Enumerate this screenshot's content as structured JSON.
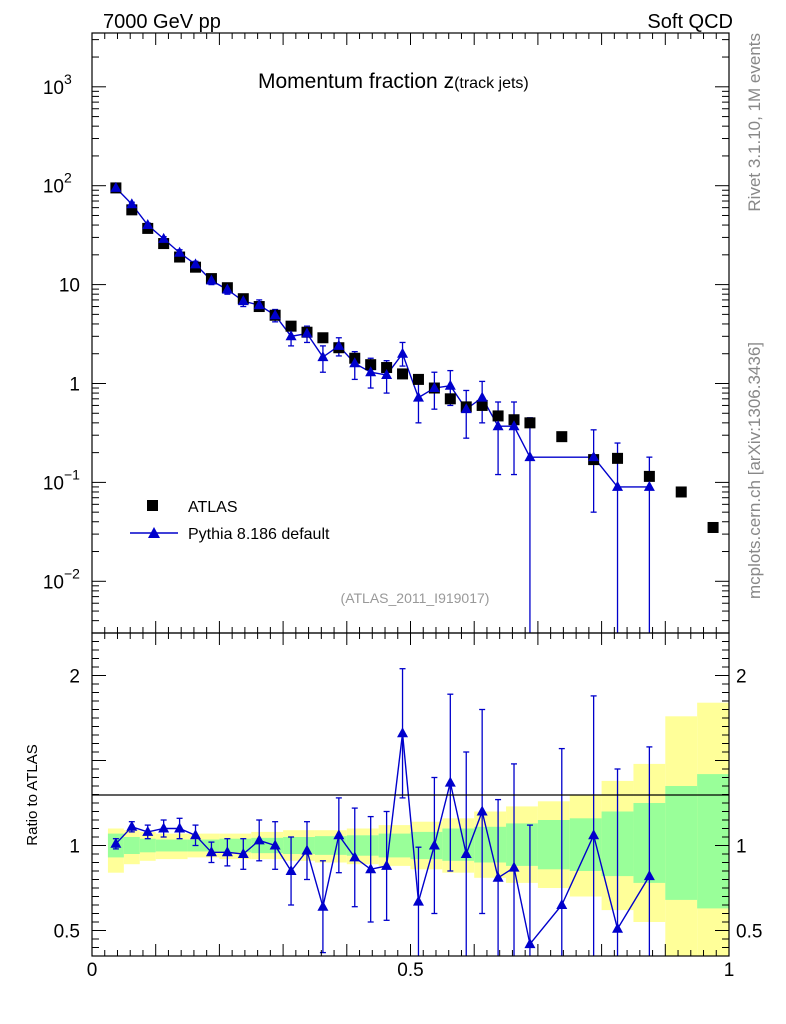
{
  "header": {
    "left": "7000 GeV pp",
    "right": "Soft QCD"
  },
  "side_labels": {
    "rivet": "Rivet 3.1.10,  1M events",
    "mcplots": "mcplots.cern.ch [arXiv:1306.3436]"
  },
  "chart_data": {
    "type": "scatter",
    "title_main": "Momentum fraction z",
    "title_sub": "(track jets)",
    "analysis_id": "(ATLAS_2011_I919017)",
    "xlim": [
      0,
      1
    ],
    "xticks": [
      {
        "v": 0,
        "label": "0"
      },
      {
        "v": 0.5,
        "label": "0.5"
      },
      {
        "v": 1,
        "label": "1"
      }
    ],
    "main_yscale": "log",
    "main_ylim": [
      0.003,
      3500
    ],
    "main_yticks": [
      {
        "v": 0.01,
        "base": "10",
        "exp": "−2"
      },
      {
        "v": 0.1,
        "base": "10",
        "exp": "−1"
      },
      {
        "v": 1,
        "base": "1",
        "exp": ""
      },
      {
        "v": 10,
        "base": "10",
        "exp": ""
      },
      {
        "v": 100,
        "base": "10",
        "exp": "2"
      },
      {
        "v": 1000,
        "base": "10",
        "exp": "3"
      }
    ],
    "ratio_ylabel": "Ratio to ATLAS",
    "ratio_ylim": [
      0.35,
      2.25
    ],
    "ratio_yticks": [
      {
        "v": 0.5,
        "label": "0.5"
      },
      {
        "v": 1,
        "label": "1"
      },
      {
        "v": 2,
        "label": "2"
      }
    ],
    "legend": {
      "data_label": "ATLAS",
      "mc_label": "Pythia 8.186 default"
    },
    "colors": {
      "data": "#000000",
      "mc": "#0000cc",
      "band_inner": "#99ff99",
      "band_outer": "#ffff99"
    },
    "data": [
      {
        "x": 0.0375,
        "y": 95
      },
      {
        "x": 0.0625,
        "y": 57
      },
      {
        "x": 0.0875,
        "y": 37
      },
      {
        "x": 0.1125,
        "y": 26
      },
      {
        "x": 0.1375,
        "y": 19
      },
      {
        "x": 0.1625,
        "y": 15
      },
      {
        "x": 0.1875,
        "y": 11.5
      },
      {
        "x": 0.2125,
        "y": 9.3
      },
      {
        "x": 0.2375,
        "y": 7.2
      },
      {
        "x": 0.2625,
        "y": 6.0
      },
      {
        "x": 0.2875,
        "y": 4.9
      },
      {
        "x": 0.3125,
        "y": 3.8
      },
      {
        "x": 0.3375,
        "y": 3.3
      },
      {
        "x": 0.3625,
        "y": 2.9
      },
      {
        "x": 0.3875,
        "y": 2.3
      },
      {
        "x": 0.4125,
        "y": 1.8
      },
      {
        "x": 0.4375,
        "y": 1.55
      },
      {
        "x": 0.4625,
        "y": 1.45
      },
      {
        "x": 0.4875,
        "y": 1.25
      },
      {
        "x": 0.5125,
        "y": 1.1
      },
      {
        "x": 0.5375,
        "y": 0.9
      },
      {
        "x": 0.5625,
        "y": 0.7
      },
      {
        "x": 0.5875,
        "y": 0.58
      },
      {
        "x": 0.6125,
        "y": 0.6
      },
      {
        "x": 0.6375,
        "y": 0.47
      },
      {
        "x": 0.6625,
        "y": 0.43
      },
      {
        "x": 0.6875,
        "y": 0.4
      },
      {
        "x": 0.7375,
        "y": 0.29
      },
      {
        "x": 0.7875,
        "y": 0.17
      },
      {
        "x": 0.825,
        "y": 0.175
      },
      {
        "x": 0.875,
        "y": 0.115
      },
      {
        "x": 0.925,
        "y": 0.08
      },
      {
        "x": 0.975,
        "y": 0.035
      }
    ],
    "mc": [
      {
        "x": 0.0375,
        "y": 95,
        "lo": 91,
        "hi": 99
      },
      {
        "x": 0.0625,
        "y": 65,
        "lo": 62,
        "hi": 68
      },
      {
        "x": 0.0875,
        "y": 40,
        "lo": 38,
        "hi": 42
      },
      {
        "x": 0.1125,
        "y": 29,
        "lo": 27.5,
        "hi": 30.5
      },
      {
        "x": 0.1375,
        "y": 21,
        "lo": 19.5,
        "hi": 22.5
      },
      {
        "x": 0.1625,
        "y": 16,
        "lo": 14.8,
        "hi": 17.2
      },
      {
        "x": 0.1875,
        "y": 11,
        "lo": 10,
        "hi": 12
      },
      {
        "x": 0.2125,
        "y": 8.9,
        "lo": 8,
        "hi": 9.8
      },
      {
        "x": 0.2375,
        "y": 6.8,
        "lo": 6,
        "hi": 7.6
      },
      {
        "x": 0.2625,
        "y": 6.2,
        "lo": 5.4,
        "hi": 7
      },
      {
        "x": 0.2875,
        "y": 4.9,
        "lo": 4.2,
        "hi": 5.6
      },
      {
        "x": 0.3125,
        "y": 3.0,
        "lo": 2.4,
        "hi": 3.6
      },
      {
        "x": 0.3375,
        "y": 3.2,
        "lo": 2.6,
        "hi": 3.8
      },
      {
        "x": 0.3625,
        "y": 1.85,
        "lo": 1.3,
        "hi": 2.4
      },
      {
        "x": 0.3875,
        "y": 2.4,
        "lo": 1.9,
        "hi": 2.9
      },
      {
        "x": 0.4125,
        "y": 1.6,
        "lo": 1.1,
        "hi": 2.1
      },
      {
        "x": 0.4375,
        "y": 1.3,
        "lo": 0.9,
        "hi": 1.8
      },
      {
        "x": 0.4625,
        "y": 1.22,
        "lo": 0.8,
        "hi": 1.7
      },
      {
        "x": 0.4875,
        "y": 2.0,
        "lo": 1.5,
        "hi": 2.6
      },
      {
        "x": 0.5125,
        "y": 0.72,
        "lo": 0.4,
        "hi": 1.1
      },
      {
        "x": 0.5375,
        "y": 0.9,
        "lo": 0.55,
        "hi": 1.3
      },
      {
        "x": 0.5625,
        "y": 0.95,
        "lo": 0.6,
        "hi": 1.35
      },
      {
        "x": 0.5875,
        "y": 0.55,
        "lo": 0.28,
        "hi": 0.85
      },
      {
        "x": 0.6125,
        "y": 0.72,
        "lo": 0.4,
        "hi": 1.05
      },
      {
        "x": 0.6375,
        "y": 0.37,
        "lo": 0.12,
        "hi": 0.65
      },
      {
        "x": 0.6625,
        "y": 0.37,
        "lo": 0.12,
        "hi": 0.65
      },
      {
        "x": 0.6875,
        "y": 0.18,
        "lo": 0.001,
        "hi": 0.45
      },
      {
        "x": 0.7875,
        "y": 0.18,
        "lo": 0.05,
        "hi": 0.34
      },
      {
        "x": 0.825,
        "y": 0.09,
        "lo": 0.001,
        "hi": 0.25
      },
      {
        "x": 0.875,
        "y": 0.09,
        "lo": 0.001,
        "hi": 0.18
      }
    ],
    "ratio_mc": [
      {
        "x": 0.0375,
        "y": 1.01,
        "lo": 0.98,
        "hi": 1.04
      },
      {
        "x": 0.0625,
        "y": 1.11,
        "lo": 1.08,
        "hi": 1.14
      },
      {
        "x": 0.0875,
        "y": 1.08,
        "lo": 1.04,
        "hi": 1.12
      },
      {
        "x": 0.1125,
        "y": 1.1,
        "lo": 1.05,
        "hi": 1.15
      },
      {
        "x": 0.1375,
        "y": 1.1,
        "lo": 1.04,
        "hi": 1.16
      },
      {
        "x": 0.1625,
        "y": 1.06,
        "lo": 1.0,
        "hi": 1.12
      },
      {
        "x": 0.1875,
        "y": 0.96,
        "lo": 0.9,
        "hi": 1.02
      },
      {
        "x": 0.2125,
        "y": 0.96,
        "lo": 0.88,
        "hi": 1.04
      },
      {
        "x": 0.2375,
        "y": 0.95,
        "lo": 0.86,
        "hi": 1.04
      },
      {
        "x": 0.2625,
        "y": 1.03,
        "lo": 0.91,
        "hi": 1.15
      },
      {
        "x": 0.2875,
        "y": 1.0,
        "lo": 0.86,
        "hi": 1.14
      },
      {
        "x": 0.3125,
        "y": 0.85,
        "lo": 0.65,
        "hi": 1.05
      },
      {
        "x": 0.3375,
        "y": 0.97,
        "lo": 0.8,
        "hi": 1.14
      },
      {
        "x": 0.3625,
        "y": 0.64,
        "lo": 0.37,
        "hi": 0.91
      },
      {
        "x": 0.3875,
        "y": 1.06,
        "lo": 0.84,
        "hi": 1.28
      },
      {
        "x": 0.4125,
        "y": 0.93,
        "lo": 0.64,
        "hi": 1.22
      },
      {
        "x": 0.4375,
        "y": 0.86,
        "lo": 0.55,
        "hi": 1.17
      },
      {
        "x": 0.4625,
        "y": 0.88,
        "lo": 0.56,
        "hi": 1.2
      },
      {
        "x": 0.4875,
        "y": 1.66,
        "lo": 1.28,
        "hi": 2.04
      },
      {
        "x": 0.5125,
        "y": 0.67,
        "lo": 0.35,
        "hi": 0.99
      },
      {
        "x": 0.5375,
        "y": 1.0,
        "lo": 0.6,
        "hi": 1.4
      },
      {
        "x": 0.5625,
        "y": 1.37,
        "lo": 0.85,
        "hi": 1.89
      },
      {
        "x": 0.5875,
        "y": 0.95,
        "lo": 0.35,
        "hi": 1.55
      },
      {
        "x": 0.6125,
        "y": 1.2,
        "lo": 0.6,
        "hi": 1.8
      },
      {
        "x": 0.6375,
        "y": 0.81,
        "lo": 0.35,
        "hi": 1.27
      },
      {
        "x": 0.6625,
        "y": 0.87,
        "lo": 0.35,
        "hi": 1.48
      },
      {
        "x": 0.6875,
        "y": 0.42,
        "lo": 0.35,
        "hi": 1.12
      },
      {
        "x": 0.7375,
        "y": 0.65,
        "lo": 0.35,
        "hi": 1.57
      },
      {
        "x": 0.7875,
        "y": 1.06,
        "lo": 0.3,
        "hi": 1.88
      },
      {
        "x": 0.825,
        "y": 0.51,
        "lo": 0.35,
        "hi": 1.45
      },
      {
        "x": 0.875,
        "y": 0.82,
        "lo": 0.35,
        "hi": 1.58
      }
    ],
    "band_inner": [
      {
        "x0": 0.025,
        "x1": 0.05,
        "lo": 0.93,
        "hi": 1.07
      },
      {
        "x0": 0.05,
        "x1": 0.075,
        "lo": 0.95,
        "hi": 1.05
      },
      {
        "x0": 0.075,
        "x1": 0.1,
        "lo": 0.96,
        "hi": 1.04
      },
      {
        "x0": 0.1,
        "x1": 0.15,
        "lo": 0.965,
        "hi": 1.035
      },
      {
        "x0": 0.15,
        "x1": 0.2,
        "lo": 0.965,
        "hi": 1.035
      },
      {
        "x0": 0.2,
        "x1": 0.25,
        "lo": 0.96,
        "hi": 1.04
      },
      {
        "x0": 0.25,
        "x1": 0.3,
        "lo": 0.955,
        "hi": 1.045
      },
      {
        "x0": 0.3,
        "x1": 0.35,
        "lo": 0.95,
        "hi": 1.05
      },
      {
        "x0": 0.35,
        "x1": 0.4,
        "lo": 0.945,
        "hi": 1.055
      },
      {
        "x0": 0.4,
        "x1": 0.45,
        "lo": 0.94,
        "hi": 1.06
      },
      {
        "x0": 0.45,
        "x1": 0.5,
        "lo": 0.93,
        "hi": 1.07
      },
      {
        "x0": 0.5,
        "x1": 0.55,
        "lo": 0.92,
        "hi": 1.08
      },
      {
        "x0": 0.55,
        "x1": 0.6,
        "lo": 0.91,
        "hi": 1.1
      },
      {
        "x0": 0.6,
        "x1": 0.65,
        "lo": 0.9,
        "hi": 1.11
      },
      {
        "x0": 0.65,
        "x1": 0.7,
        "lo": 0.88,
        "hi": 1.13
      },
      {
        "x0": 0.7,
        "x1": 0.75,
        "lo": 0.86,
        "hi": 1.15
      },
      {
        "x0": 0.75,
        "x1": 0.8,
        "lo": 0.85,
        "hi": 1.16
      },
      {
        "x0": 0.8,
        "x1": 0.85,
        "lo": 0.82,
        "hi": 1.2
      },
      {
        "x0": 0.85,
        "x1": 0.9,
        "lo": 0.78,
        "hi": 1.25
      },
      {
        "x0": 0.9,
        "x1": 0.95,
        "lo": 0.68,
        "hi": 1.35
      },
      {
        "x0": 0.95,
        "x1": 1.0,
        "lo": 0.63,
        "hi": 1.42
      }
    ],
    "band_outer": [
      {
        "x0": 0.025,
        "x1": 0.05,
        "lo": 0.84,
        "hi": 1.1
      },
      {
        "x0": 0.05,
        "x1": 0.075,
        "lo": 0.89,
        "hi": 1.09
      },
      {
        "x0": 0.075,
        "x1": 0.1,
        "lo": 0.91,
        "hi": 1.08
      },
      {
        "x0": 0.1,
        "x1": 0.15,
        "lo": 0.92,
        "hi": 1.07
      },
      {
        "x0": 0.15,
        "x1": 0.2,
        "lo": 0.93,
        "hi": 1.07
      },
      {
        "x0": 0.2,
        "x1": 0.25,
        "lo": 0.92,
        "hi": 1.07
      },
      {
        "x0": 0.25,
        "x1": 0.3,
        "lo": 0.92,
        "hi": 1.08
      },
      {
        "x0": 0.3,
        "x1": 0.35,
        "lo": 0.91,
        "hi": 1.09
      },
      {
        "x0": 0.35,
        "x1": 0.4,
        "lo": 0.9,
        "hi": 1.09
      },
      {
        "x0": 0.4,
        "x1": 0.45,
        "lo": 0.89,
        "hi": 1.1
      },
      {
        "x0": 0.45,
        "x1": 0.5,
        "lo": 0.88,
        "hi": 1.12
      },
      {
        "x0": 0.5,
        "x1": 0.55,
        "lo": 0.86,
        "hi": 1.14
      },
      {
        "x0": 0.55,
        "x1": 0.6,
        "lo": 0.84,
        "hi": 1.16
      },
      {
        "x0": 0.6,
        "x1": 0.65,
        "lo": 0.81,
        "hi": 1.2
      },
      {
        "x0": 0.65,
        "x1": 0.7,
        "lo": 0.78,
        "hi": 1.23
      },
      {
        "x0": 0.7,
        "x1": 0.75,
        "lo": 0.75,
        "hi": 1.26
      },
      {
        "x0": 0.75,
        "x1": 0.8,
        "lo": 0.7,
        "hi": 1.3
      },
      {
        "x0": 0.8,
        "x1": 0.85,
        "lo": 0.62,
        "hi": 1.38
      },
      {
        "x0": 0.85,
        "x1": 0.9,
        "lo": 0.55,
        "hi": 1.48
      },
      {
        "x0": 0.9,
        "x1": 0.95,
        "lo": 0.35,
        "hi": 1.76
      },
      {
        "x0": 0.95,
        "x1": 1.0,
        "lo": 0.35,
        "hi": 1.84
      }
    ]
  }
}
